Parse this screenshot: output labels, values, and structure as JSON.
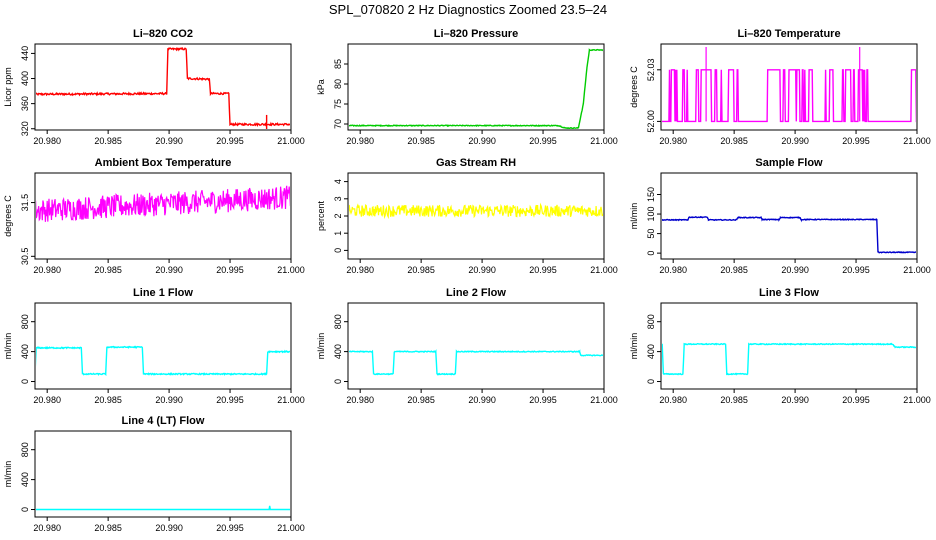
{
  "title": "SPL_070820  2 Hz Diagnostics Zoomed 23.5–24",
  "colors": {
    "red": "#ff0000",
    "green": "#00cc00",
    "magenta": "#ff00ff",
    "yellow": "#ffff00",
    "blue": "#0000cc",
    "cyan": "#00ffff",
    "axis": "#000000"
  },
  "chart_data": [
    {
      "type": "line",
      "title": "Li–820 CO2",
      "ylabel": "Licor ppm",
      "color": "red",
      "xlim": [
        20.979,
        21.0
      ],
      "ylim": [
        318,
        455
      ],
      "xticks": [
        "20.980",
        "20.985",
        "20.990",
        "20.995",
        "21.000"
      ],
      "xtick_values": [
        20.98,
        20.985,
        20.99,
        20.995,
        21.0
      ],
      "yticks": [
        "320",
        "360",
        "400",
        "440"
      ],
      "ytick_values": [
        320,
        360,
        400,
        440
      ],
      "series": [
        {
          "x": [
            20.979,
            20.9898,
            20.9899,
            20.9914,
            20.9915,
            20.9933,
            20.9934,
            20.9949,
            20.995,
            21.0
          ],
          "y": [
            375,
            376,
            447,
            447,
            400,
            399,
            376,
            376,
            327,
            327
          ]
        }
      ],
      "noise": 1.5,
      "annotations": [
        {
          "type": "spike",
          "x": 20.998,
          "y0": 316,
          "y1": 342
        }
      ]
    },
    {
      "type": "line",
      "title": "Li–820 Pressure",
      "ylabel": "kPa",
      "color": "green",
      "xlim": [
        20.979,
        21.0
      ],
      "ylim": [
        68.5,
        90
      ],
      "xticks": [
        "20.980",
        "20.985",
        "20.990",
        "20.995",
        "21.000"
      ],
      "xtick_values": [
        20.98,
        20.985,
        20.99,
        20.995,
        21.0
      ],
      "yticks": [
        "70",
        "75",
        "80",
        "85"
      ],
      "ytick_values": [
        70,
        75,
        80,
        85
      ],
      "series": [
        {
          "x": [
            20.979,
            20.9963,
            20.9968,
            20.9979,
            20.9983,
            20.9986,
            20.9988,
            21.0
          ],
          "y": [
            69.6,
            69.6,
            69.0,
            69.0,
            75,
            84,
            88.5,
            88.5
          ]
        }
      ],
      "noise": 0.1
    },
    {
      "type": "line",
      "title": "Li–820 Temperature",
      "ylabel": "degrees C",
      "color": "magenta",
      "xlim": [
        20.979,
        21.0
      ],
      "ylim": [
        51.995,
        52.045
      ],
      "xticks": [
        "20.980",
        "20.985",
        "20.990",
        "20.995",
        "21.000"
      ],
      "xtick_values": [
        20.98,
        20.985,
        20.99,
        20.995,
        21.0
      ],
      "yticks": [
        "52.00",
        "52.03"
      ],
      "ytick_values": [
        52.0,
        52.03
      ],
      "series": [
        {
          "x": [
            20.979,
            21.0
          ],
          "y": [
            52.0,
            52.0
          ]
        }
      ],
      "levels": [
        52.0,
        52.03
      ],
      "spikes_top": [
        20.9827,
        20.9953
      ],
      "noise": 0
    },
    {
      "type": "line",
      "title": "Ambient Box Temperature",
      "ylabel": "degrees C",
      "color": "magenta",
      "xlim": [
        20.979,
        21.0
      ],
      "ylim": [
        30.45,
        32.05
      ],
      "xticks": [
        "20.980",
        "20.985",
        "20.990",
        "20.995",
        "21.000"
      ],
      "xtick_values": [
        20.98,
        20.985,
        20.99,
        20.995,
        21.0
      ],
      "yticks": [
        "30.5",
        "31.5"
      ],
      "ytick_values": [
        30.5,
        31.5
      ],
      "series": [
        {
          "x": [
            20.979,
            21.0
          ],
          "y": [
            31.35,
            31.6
          ]
        }
      ],
      "noise": 0.22
    },
    {
      "type": "line",
      "title": "Gas Stream RH",
      "ylabel": "percent",
      "color": "yellow",
      "xlim": [
        20.979,
        21.0
      ],
      "ylim": [
        -0.5,
        4.5
      ],
      "xticks": [
        "20.980",
        "20.985",
        "20.990",
        "20.995",
        "21.000"
      ],
      "xtick_values": [
        20.98,
        20.985,
        20.99,
        20.995,
        21.0
      ],
      "yticks": [
        "0",
        "1",
        "2",
        "3",
        "4"
      ],
      "ytick_values": [
        0,
        1,
        2,
        3,
        4
      ],
      "series": [
        {
          "x": [
            20.979,
            21.0
          ],
          "y": [
            2.3,
            2.3
          ]
        }
      ],
      "noise": 0.35
    },
    {
      "type": "line",
      "title": "Sample Flow",
      "ylabel": "ml/min",
      "color": "blue",
      "xlim": [
        20.979,
        21.0
      ],
      "ylim": [
        -15,
        205
      ],
      "xticks": [
        "20.980",
        "20.985",
        "20.990",
        "20.995",
        "21.000"
      ],
      "xtick_values": [
        20.98,
        20.985,
        20.99,
        20.995,
        21.0
      ],
      "yticks": [
        "0",
        "50",
        "100",
        "150"
      ],
      "ytick_values": [
        0,
        50,
        100,
        150
      ],
      "series": [
        {
          "x": [
            20.979,
            20.9812,
            20.9813,
            20.9828,
            20.9829,
            20.9852,
            20.9853,
            20.9872,
            20.9873,
            20.9887,
            20.9888,
            20.9904,
            20.9905,
            20.9967,
            20.9968,
            21.0
          ],
          "y": [
            85,
            85,
            92,
            92,
            85,
            85,
            91,
            91,
            86,
            86,
            91,
            91,
            86,
            86,
            2,
            2
          ]
        }
      ],
      "noise": 1
    },
    {
      "type": "line",
      "title": "Line 1 Flow",
      "ylabel": "ml/min",
      "color": "cyan",
      "xlim": [
        20.979,
        21.0
      ],
      "ylim": [
        -100,
        1050
      ],
      "xticks": [
        "20.980",
        "20.985",
        "20.990",
        "20.995",
        "21.000"
      ],
      "xtick_values": [
        20.98,
        20.985,
        20.99,
        20.995,
        21.0
      ],
      "yticks": [
        "0",
        "400",
        "800"
      ],
      "ytick_values": [
        0,
        400,
        800
      ],
      "series": [
        {
          "x": [
            20.979,
            20.9791,
            20.9828,
            20.9829,
            20.9848,
            20.9849,
            20.9878,
            20.9879,
            20.998,
            20.9981,
            21.0
          ],
          "y": [
            100,
            450,
            450,
            100,
            100,
            460,
            460,
            100,
            100,
            400,
            400
          ]
        }
      ],
      "noise": 8
    },
    {
      "type": "line",
      "title": "Line 2 Flow",
      "ylabel": "ml/min",
      "color": "cyan",
      "xlim": [
        20.979,
        21.0
      ],
      "ylim": [
        -100,
        1050
      ],
      "xticks": [
        "20.980",
        "20.985",
        "20.990",
        "20.995",
        "21.000"
      ],
      "xtick_values": [
        20.98,
        20.985,
        20.99,
        20.995,
        21.0
      ],
      "yticks": [
        "0",
        "400",
        "800"
      ],
      "ytick_values": [
        0,
        400,
        800
      ],
      "series": [
        {
          "x": [
            20.979,
            20.981,
            20.9811,
            20.9827,
            20.9828,
            20.9862,
            20.9863,
            20.9878,
            20.9879,
            20.998,
            20.9981,
            21.0
          ],
          "y": [
            400,
            400,
            100,
            100,
            400,
            400,
            100,
            100,
            400,
            400,
            350,
            350
          ]
        }
      ],
      "noise": 6
    },
    {
      "type": "line",
      "title": "Line 3 Flow",
      "ylabel": "ml/min",
      "color": "cyan",
      "xlim": [
        20.979,
        21.0
      ],
      "ylim": [
        -100,
        1050
      ],
      "xticks": [
        "20.980",
        "20.985",
        "20.990",
        "20.995",
        "21.000"
      ],
      "xtick_values": [
        20.98,
        20.985,
        20.99,
        20.995,
        21.0
      ],
      "yticks": [
        "0",
        "400",
        "800"
      ],
      "ytick_values": [
        0,
        400,
        800
      ],
      "series": [
        {
          "x": [
            20.9791,
            20.9792,
            20.9808,
            20.9809,
            20.9843,
            20.9844,
            20.9861,
            20.9862,
            20.998,
            20.9982,
            21.0
          ],
          "y": [
            500,
            100,
            100,
            500,
            500,
            100,
            100,
            500,
            500,
            460,
            460
          ]
        }
      ],
      "noise": 6
    },
    {
      "type": "line",
      "title": "Line 4 (LT) Flow",
      "ylabel": "ml/min",
      "color": "cyan",
      "xlim": [
        20.979,
        21.0
      ],
      "ylim": [
        -100,
        1050
      ],
      "xticks": [
        "20.980",
        "20.985",
        "20.990",
        "20.995",
        "21.000"
      ],
      "xtick_values": [
        20.98,
        20.985,
        20.99,
        20.995,
        21.0
      ],
      "yticks": [
        "0",
        "400",
        "800"
      ],
      "ytick_values": [
        0,
        400,
        800
      ],
      "series": [
        {
          "x": [
            20.979,
            20.9982,
            20.9982,
            20.9983,
            21.0
          ],
          "y": [
            0,
            0,
            100,
            0,
            0
          ]
        }
      ],
      "noise": 0
    }
  ]
}
